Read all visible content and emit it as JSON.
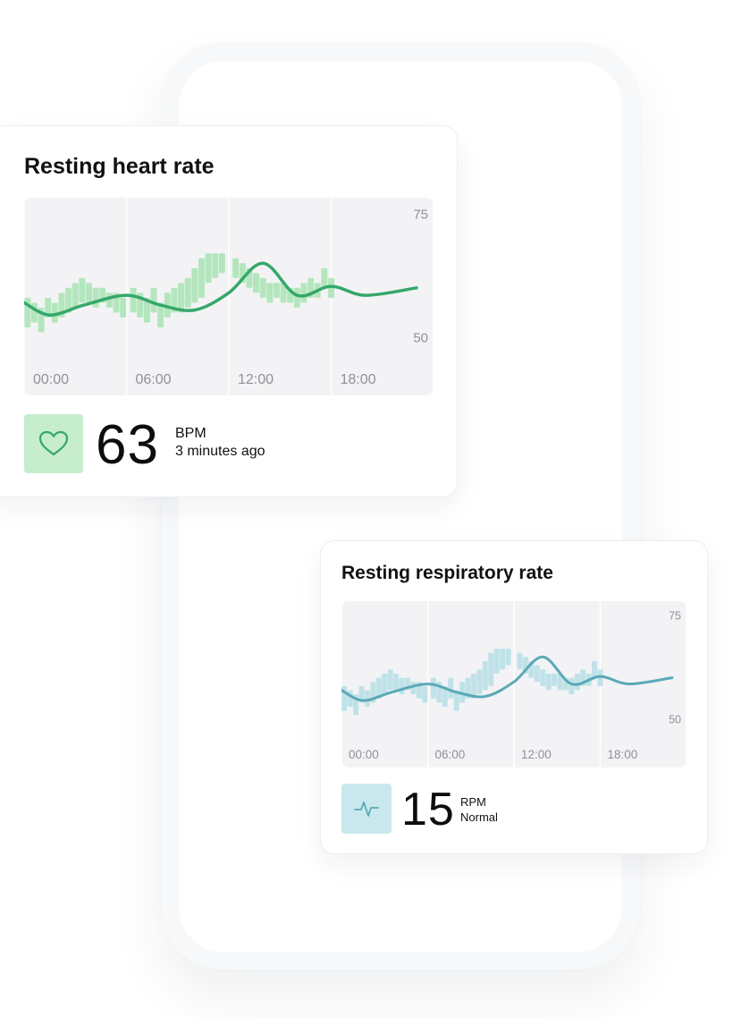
{
  "cards": {
    "heart_rate": {
      "title": "Resting heart rate",
      "value": "63",
      "unit": "BPM",
      "status": "3 minutes ago",
      "icon": "heart-icon",
      "accent_line": "#34a86a",
      "accent_bar": "#b4e6bd",
      "accent_icon_bg": "#c6edcc"
    },
    "respiratory_rate": {
      "title": "Resting respiratory rate",
      "value": "15",
      "unit": "RPM",
      "status": "Normal",
      "icon": "pulse-icon",
      "accent_line": "#5aa9b6",
      "accent_bar": "#bfe2e8",
      "accent_icon_bg": "#c9e8ed"
    }
  },
  "chart_data": [
    {
      "type": "line",
      "title": "Resting heart rate",
      "x_tick_labels": [
        "00:00",
        "06:00",
        "12:00",
        "18:00"
      ],
      "y_tick_labels": [
        "75",
        "50"
      ],
      "ylim": [
        45,
        78
      ],
      "grid": "vertical",
      "series": [
        {
          "x": [
            0,
            1.5,
            3.5,
            6,
            8,
            10,
            12,
            14,
            16,
            18,
            20,
            23
          ],
          "y": [
            57,
            54.5,
            56.5,
            58.5,
            56.5,
            55.5,
            59,
            65,
            58.5,
            60.3,
            58.5,
            60
          ]
        }
      ],
      "bars_range": [
        [
          0.2,
          52,
          58
        ],
        [
          0.6,
          53,
          57
        ],
        [
          1.0,
          51,
          56
        ],
        [
          1.4,
          54,
          58
        ],
        [
          1.8,
          53,
          57
        ],
        [
          2.2,
          54,
          59
        ],
        [
          2.6,
          55,
          60
        ],
        [
          3.0,
          56,
          61
        ],
        [
          3.4,
          57,
          62
        ],
        [
          3.8,
          57,
          61
        ],
        [
          4.2,
          56,
          60
        ],
        [
          4.6,
          57,
          60
        ],
        [
          5.0,
          56,
          59
        ],
        [
          5.4,
          55,
          59
        ],
        [
          5.8,
          54,
          58
        ],
        [
          6.4,
          55,
          60
        ],
        [
          6.8,
          54,
          59
        ],
        [
          7.2,
          53,
          58
        ],
        [
          7.6,
          55,
          60
        ],
        [
          8.0,
          52,
          57
        ],
        [
          8.4,
          54,
          59
        ],
        [
          8.8,
          55,
          60
        ],
        [
          9.2,
          55,
          61
        ],
        [
          9.6,
          56,
          62
        ],
        [
          10.0,
          57,
          64
        ],
        [
          10.4,
          58,
          66
        ],
        [
          10.8,
          61,
          67
        ],
        [
          11.2,
          62,
          67
        ],
        [
          11.6,
          63,
          67
        ],
        [
          12.4,
          62,
          66
        ],
        [
          12.8,
          61,
          65
        ],
        [
          13.2,
          60,
          64
        ],
        [
          13.6,
          59,
          63
        ],
        [
          14.0,
          58,
          62
        ],
        [
          14.4,
          57,
          61
        ],
        [
          14.8,
          58,
          61
        ],
        [
          15.2,
          57,
          61
        ],
        [
          15.6,
          57,
          60
        ],
        [
          16.0,
          56,
          60
        ],
        [
          16.4,
          57,
          61
        ],
        [
          16.8,
          58,
          62
        ],
        [
          17.2,
          58,
          61
        ],
        [
          17.6,
          60,
          64
        ],
        [
          18.0,
          58,
          62
        ]
      ]
    },
    {
      "type": "line",
      "title": "Resting respiratory rate",
      "x_tick_labels": [
        "00:00",
        "06:00",
        "12:00",
        "18:00"
      ],
      "y_tick_labels": [
        "75",
        "50"
      ],
      "ylim": [
        45,
        78
      ],
      "grid": "vertical",
      "series": [
        {
          "x": [
            0,
            1.5,
            3.5,
            6,
            8,
            10,
            12,
            14,
            16,
            18,
            20,
            23
          ],
          "y": [
            57,
            54.5,
            56.5,
            58.5,
            56.5,
            55.5,
            59,
            65,
            58.5,
            60.3,
            58.5,
            60
          ]
        }
      ],
      "bars_range": [
        [
          0.2,
          52,
          58
        ],
        [
          0.6,
          53,
          57
        ],
        [
          1.0,
          51,
          56
        ],
        [
          1.4,
          54,
          58
        ],
        [
          1.8,
          53,
          57
        ],
        [
          2.2,
          54,
          59
        ],
        [
          2.6,
          55,
          60
        ],
        [
          3.0,
          56,
          61
        ],
        [
          3.4,
          57,
          62
        ],
        [
          3.8,
          57,
          61
        ],
        [
          4.2,
          56,
          60
        ],
        [
          4.6,
          57,
          60
        ],
        [
          5.0,
          56,
          59
        ],
        [
          5.4,
          55,
          59
        ],
        [
          5.8,
          54,
          58
        ],
        [
          6.4,
          55,
          60
        ],
        [
          6.8,
          54,
          59
        ],
        [
          7.2,
          53,
          58
        ],
        [
          7.6,
          55,
          60
        ],
        [
          8.0,
          52,
          57
        ],
        [
          8.4,
          54,
          59
        ],
        [
          8.8,
          55,
          60
        ],
        [
          9.2,
          55,
          61
        ],
        [
          9.6,
          56,
          62
        ],
        [
          10.0,
          57,
          64
        ],
        [
          10.4,
          58,
          66
        ],
        [
          10.8,
          61,
          67
        ],
        [
          11.2,
          62,
          67
        ],
        [
          11.6,
          63,
          67
        ],
        [
          12.4,
          62,
          66
        ],
        [
          12.8,
          61,
          65
        ],
        [
          13.2,
          60,
          64
        ],
        [
          13.6,
          59,
          63
        ],
        [
          14.0,
          58,
          62
        ],
        [
          14.4,
          57,
          61
        ],
        [
          14.8,
          58,
          61
        ],
        [
          15.2,
          57,
          61
        ],
        [
          15.6,
          57,
          60
        ],
        [
          16.0,
          56,
          60
        ],
        [
          16.4,
          57,
          61
        ],
        [
          16.8,
          58,
          62
        ],
        [
          17.2,
          58,
          61
        ],
        [
          17.6,
          60,
          64
        ],
        [
          18.0,
          58,
          62
        ]
      ]
    }
  ]
}
